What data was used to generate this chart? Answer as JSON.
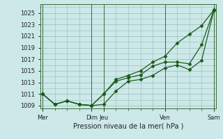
{
  "title": "Pression niveau de la mer( hPa )",
  "bg_color": "#cce8e8",
  "grid_color": "#99bbbb",
  "line_color": "#1a5c1a",
  "ylim": [
    1008.5,
    1026.5
  ],
  "yticks": [
    1009,
    1011,
    1013,
    1015,
    1017,
    1019,
    1021,
    1023,
    1025
  ],
  "xtick_positions": [
    0,
    4,
    5,
    10,
    14
  ],
  "xtick_labels": [
    "Mer",
    "Dim",
    "Jeu",
    "Ven",
    "Sam"
  ],
  "vline_positions": [
    0,
    4,
    5,
    10,
    14
  ],
  "xlim": [
    -0.2,
    14.2
  ],
  "s1": [
    1011.0,
    1009.2,
    1009.8,
    1009.2,
    1009.0,
    1009.2,
    1011.5,
    1013.2,
    1013.5,
    1014.2,
    1015.5,
    1016.0,
    1015.2,
    1016.8,
    1025.4
  ],
  "s2": [
    1011.0,
    1009.2,
    1009.8,
    1009.2,
    1009.0,
    1011.0,
    1013.2,
    1013.8,
    1014.3,
    1015.8,
    1016.5,
    1016.5,
    1016.2,
    1019.5,
    1025.5
  ],
  "s3": [
    1011.0,
    1009.2,
    1009.8,
    1009.2,
    1009.0,
    1011.0,
    1013.5,
    1014.2,
    1015.0,
    1016.5,
    1017.5,
    1019.8,
    1021.3,
    1022.8,
    1025.5
  ],
  "marker": "D",
  "markersize": 2.5,
  "linewidth": 0.9,
  "tick_fontsize": 6.0,
  "xlabel_fontsize": 7.0,
  "figsize": [
    3.2,
    2.0
  ],
  "dpi": 100
}
